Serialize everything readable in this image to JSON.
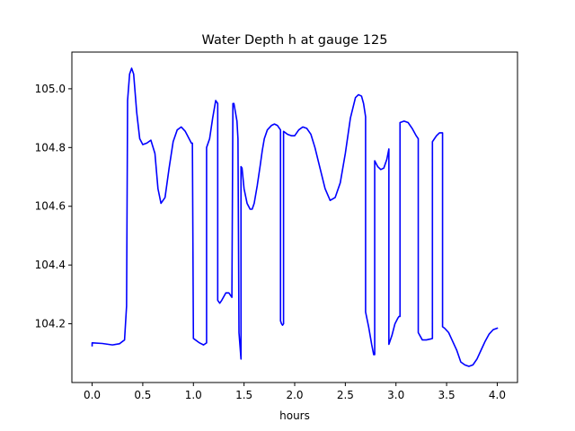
{
  "chart_data": {
    "type": "line",
    "title": "Water Depth h at gauge 125",
    "xlabel": "hours",
    "ylabel": "",
    "xlim": [
      -0.2,
      4.2
    ],
    "ylim": [
      104.0,
      105.125
    ],
    "xticks": [
      "0.0",
      "0.5",
      "1.0",
      "1.5",
      "2.0",
      "2.5",
      "3.0",
      "3.5",
      "4.0"
    ],
    "yticks": [
      "104.2",
      "104.4",
      "104.6",
      "104.8",
      "105.0"
    ],
    "grid": false,
    "legend": "none",
    "series": [
      {
        "color": "#0000ff",
        "x": [
          0.0,
          0.0,
          0.1,
          0.2,
          0.27,
          0.32,
          0.34,
          0.35,
          0.35,
          0.37,
          0.39,
          0.41,
          0.44,
          0.47,
          0.5,
          0.54,
          0.58,
          0.62,
          0.65,
          0.68,
          0.72,
          0.76,
          0.8,
          0.84,
          0.88,
          0.92,
          0.95,
          0.98,
          0.99,
          1.0,
          1.06,
          1.1,
          1.13,
          1.13,
          1.16,
          1.19,
          1.22,
          1.24,
          1.24,
          1.26,
          1.28,
          1.32,
          1.35,
          1.38,
          1.39,
          1.4,
          1.43,
          1.44,
          1.45,
          1.47,
          1.47,
          1.48,
          1.5,
          1.53,
          1.56,
          1.58,
          1.6,
          1.63,
          1.66,
          1.68,
          1.7,
          1.73,
          1.77,
          1.8,
          1.83,
          1.86,
          1.86,
          1.87,
          1.88,
          1.89,
          1.89,
          1.93,
          1.97,
          2.0,
          2.04,
          2.08,
          2.12,
          2.16,
          2.2,
          2.25,
          2.3,
          2.35,
          2.4,
          2.45,
          2.5,
          2.55,
          2.6,
          2.63,
          2.66,
          2.68,
          2.7,
          2.7,
          2.73,
          2.76,
          2.78,
          2.79,
          2.79,
          2.82,
          2.85,
          2.88,
          2.91,
          2.93,
          2.93,
          2.96,
          2.99,
          3.02,
          3.03,
          3.04,
          3.04,
          3.08,
          3.12,
          3.16,
          3.2,
          3.22,
          3.22,
          3.26,
          3.3,
          3.34,
          3.36,
          3.36,
          3.38,
          3.4,
          3.43,
          3.46,
          3.46,
          3.48,
          3.52,
          3.56,
          3.6,
          3.64,
          3.68,
          3.72,
          3.76,
          3.8,
          3.84,
          3.88,
          3.92,
          3.96,
          4.0
        ],
        "y": [
          104.125,
          104.135,
          104.133,
          104.128,
          104.132,
          104.145,
          104.26,
          104.95,
          104.96,
          105.05,
          105.07,
          105.05,
          104.92,
          104.83,
          104.81,
          104.815,
          104.825,
          104.78,
          104.66,
          104.61,
          104.63,
          104.73,
          104.82,
          104.86,
          104.87,
          104.855,
          104.835,
          104.815,
          104.815,
          104.15,
          104.135,
          104.128,
          104.135,
          104.8,
          104.83,
          104.9,
          104.96,
          104.95,
          104.28,
          104.27,
          104.28,
          104.305,
          104.305,
          104.29,
          104.95,
          104.95,
          104.89,
          104.83,
          104.17,
          104.08,
          104.735,
          104.73,
          104.66,
          104.61,
          104.59,
          104.59,
          104.61,
          104.67,
          104.74,
          104.79,
          104.83,
          104.86,
          104.875,
          104.88,
          104.875,
          104.86,
          104.21,
          104.2,
          104.195,
          104.2,
          104.855,
          104.845,
          104.84,
          104.84,
          104.86,
          104.87,
          104.865,
          104.845,
          104.8,
          104.73,
          104.66,
          104.62,
          104.63,
          104.68,
          104.78,
          104.9,
          104.97,
          104.98,
          104.975,
          104.95,
          104.905,
          104.24,
          104.19,
          104.13,
          104.095,
          104.095,
          104.755,
          104.735,
          104.725,
          104.73,
          104.76,
          104.795,
          104.13,
          104.16,
          104.2,
          104.22,
          104.225,
          104.225,
          104.885,
          104.89,
          104.885,
          104.865,
          104.84,
          104.83,
          104.17,
          104.145,
          104.145,
          104.148,
          104.15,
          104.82,
          104.83,
          104.84,
          104.85,
          104.85,
          104.19,
          104.185,
          104.17,
          104.14,
          104.11,
          104.07,
          104.06,
          104.055,
          104.06,
          104.08,
          104.11,
          104.14,
          104.165,
          104.18,
          104.185
        ]
      }
    ]
  }
}
